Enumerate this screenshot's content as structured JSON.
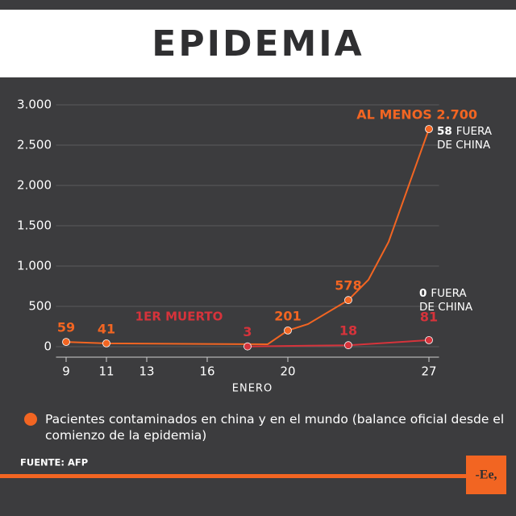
{
  "chart_data": {
    "type": "line",
    "title": "EPIDEMIA",
    "x_label": "ENERO",
    "xlim": [
      8.5,
      27.5
    ],
    "xticks": [
      9,
      11,
      13,
      16,
      20,
      27
    ],
    "ylim": [
      0,
      3000
    ],
    "yticks": [
      0,
      500,
      {
        "value": 1000,
        "label": "1.000"
      },
      {
        "value": 1500,
        "label": "1.500"
      },
      {
        "value": 2000,
        "label": "2.000"
      },
      {
        "value": 2500,
        "label": "2.500"
      },
      {
        "value": 3000,
        "label": "3.000"
      }
    ],
    "grid": true,
    "series": [
      {
        "name": "Pacientes contaminados en china y en el mundo (balance oficial desde el comienzo de la epidemia)",
        "color": "#f26522",
        "x": [
          9,
          11,
          19,
          20,
          21,
          23,
          24,
          25,
          26,
          27
        ],
        "values": [
          59,
          41,
          30,
          201,
          280,
          578,
          830,
          1300,
          2000,
          2700
        ],
        "value_labels": [
          "59",
          "41",
          null,
          "201",
          null,
          "578",
          null,
          null,
          null,
          "AL MENOS 2.700"
        ]
      },
      {
        "color": "#d6333b",
        "x": [
          18,
          23,
          27
        ],
        "values": [
          3,
          18,
          81
        ]
      }
    ],
    "annotations": [
      {
        "text": "1ER MUERTO"
      },
      {
        "bold": "58",
        "text": "FUERA",
        "line2": "DE CHINA"
      },
      {
        "bold": "0",
        "text": "FUERA",
        "line2": "DE CHINA"
      }
    ],
    "source": "FUENTE: AFP",
    "logo": "-Ee,"
  }
}
